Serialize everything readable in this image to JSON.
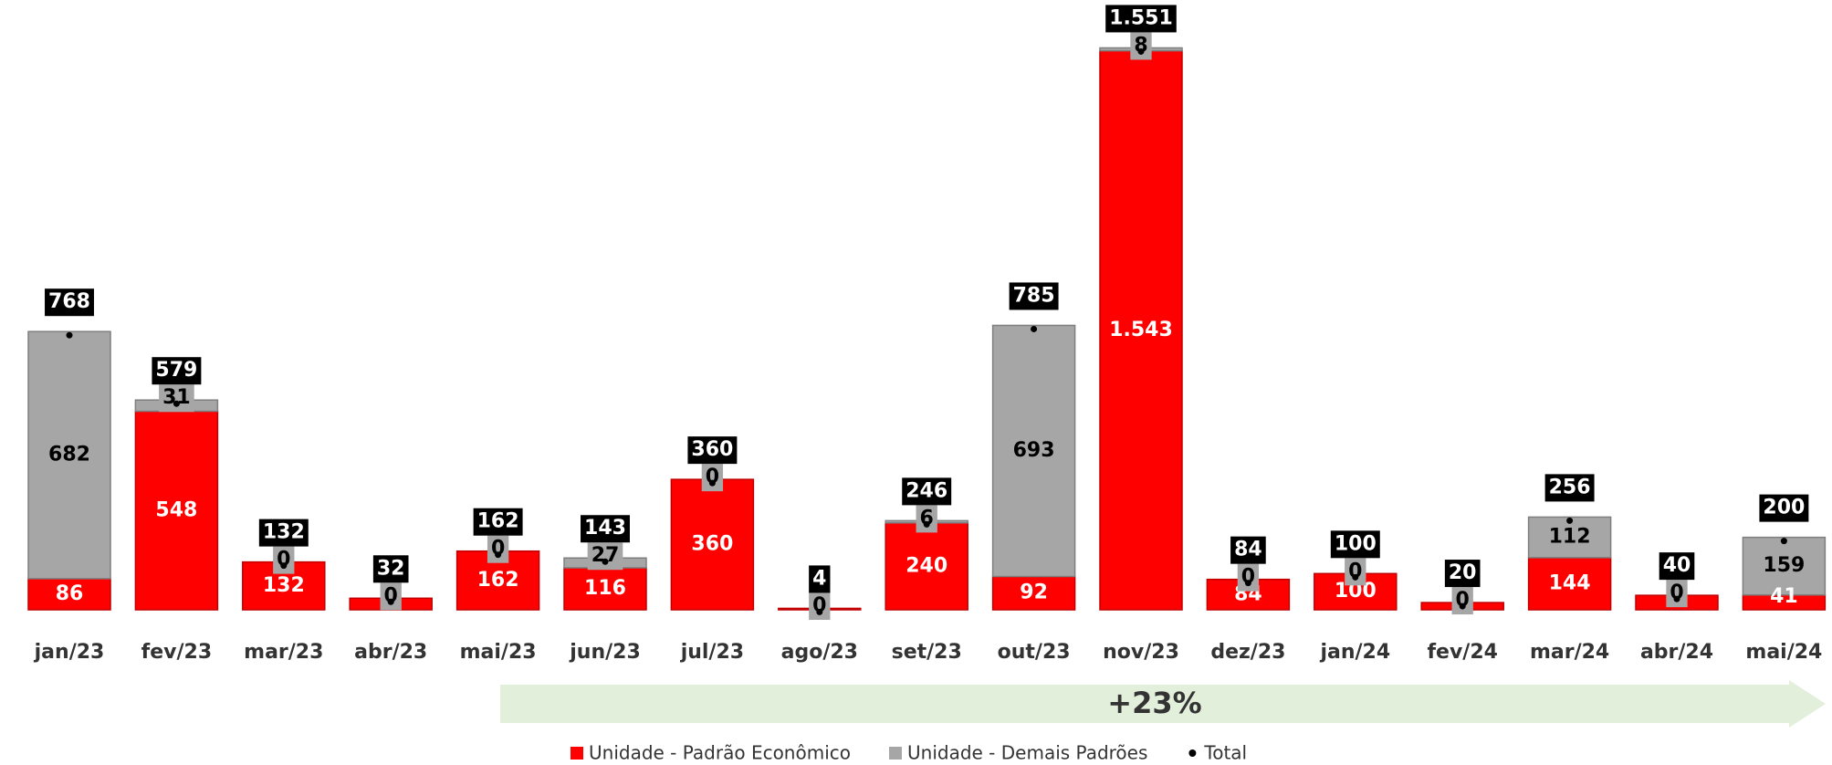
{
  "chart_data": {
    "type": "stacked_bar",
    "categories": [
      "jan/23",
      "fev/23",
      "mar/23",
      "abr/23",
      "mai/23",
      "jun/23",
      "jul/23",
      "ago/23",
      "set/23",
      "out/23",
      "nov/23",
      "dez/23",
      "jan/24",
      "fev/24",
      "mar/24",
      "abr/24",
      "mai/24"
    ],
    "series": [
      {
        "name": "Unidade - Padrão Econômico",
        "color": "#ff0000",
        "values": [
          86,
          548,
          132,
          32,
          162,
          116,
          360,
          4,
          240,
          92,
          1543,
          84,
          100,
          20,
          144,
          40,
          41
        ],
        "value_labels": [
          "86",
          "548",
          "132",
          null,
          "162",
          "116",
          "360",
          null,
          "240",
          "92",
          "1.543",
          "84",
          "100",
          null,
          "144",
          null,
          "41"
        ]
      },
      {
        "name": "Unidade - Demais Padrões",
        "color": "#a6a6a6",
        "values": [
          682,
          31,
          0,
          0,
          0,
          27,
          0,
          0,
          6,
          693,
          8,
          0,
          0,
          0,
          112,
          0,
          159
        ]
      },
      {
        "name": "Total",
        "color": "#000000",
        "values": [
          768,
          579,
          132,
          32,
          162,
          143,
          360,
          4,
          246,
          785,
          1551,
          84,
          100,
          20,
          256,
          40,
          200
        ],
        "value_labels": [
          "768",
          "579",
          "132",
          "32",
          "162",
          "143",
          "360",
          "4",
          "246",
          "785",
          "1.551",
          "84",
          "100",
          "20",
          "256",
          "40",
          "200"
        ]
      }
    ],
    "annotation": "+23%",
    "ylim": [
      0,
      1600
    ],
    "grid": false,
    "legend": "bottom"
  }
}
